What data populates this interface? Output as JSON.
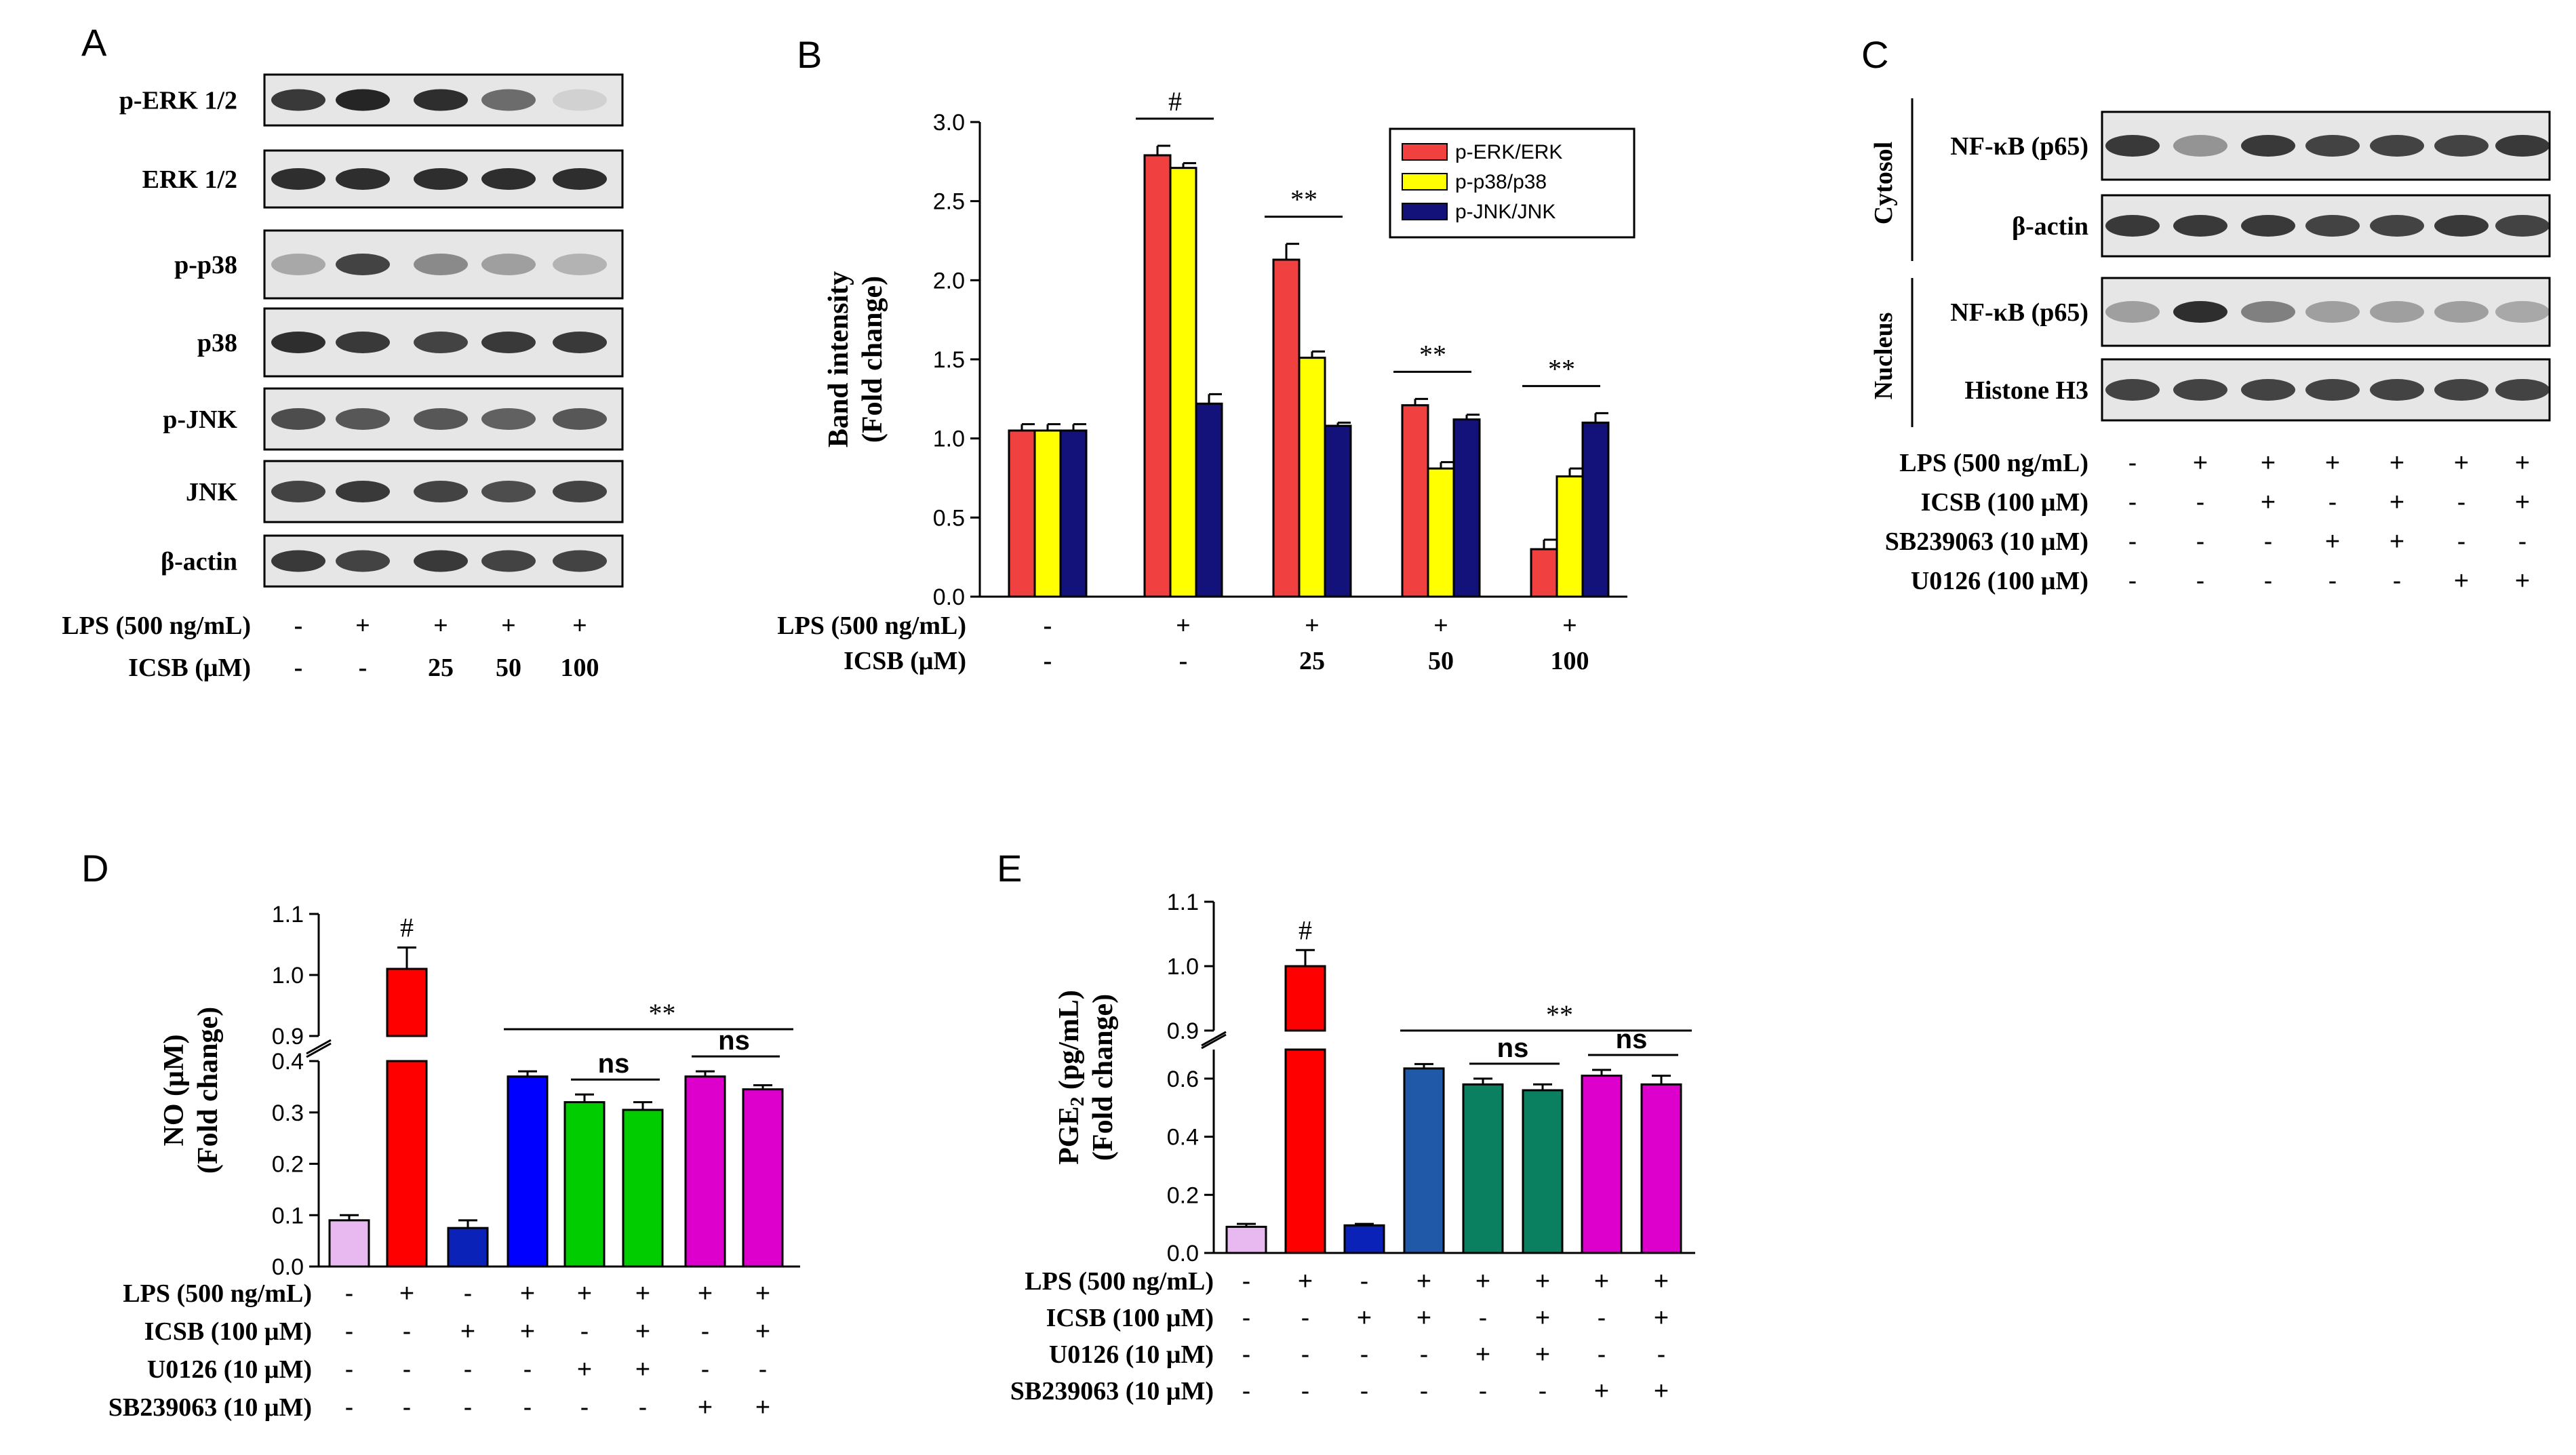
{
  "panels": {
    "A": "A",
    "B": "B",
    "C": "C",
    "D": "D",
    "E": "E"
  },
  "colors": {
    "red": "#f04040",
    "yellow": "#ffff00",
    "navy": "#12127a",
    "lilac": "#e8b8f0",
    "brightred": "#ff0000",
    "blue": "#0000ff",
    "darkblue": "#0a22b8",
    "green": "#00cc00",
    "teal": "#0a8060",
    "magenta": "#dd00cc",
    "steel": "#1f59a8"
  },
  "panelA": {
    "blots": [
      "p-ERK 1/2",
      "ERK 1/2",
      "p-p38",
      "p38",
      "p-JNK",
      "JNK",
      "β-actin"
    ],
    "conditions": [
      {
        "label": "LPS (500 ng/mL)",
        "values": [
          "-",
          "+",
          "+",
          "+",
          "+"
        ]
      },
      {
        "label": "ICSB (μM)",
        "values": [
          "-",
          "-",
          "25",
          "50",
          "100"
        ]
      }
    ]
  },
  "panelC": {
    "fractions": [
      "Cytosol",
      "Nucleus"
    ],
    "blots": [
      "NF-κB (p65)",
      "β-actin",
      "NF-κB (p65)",
      "Histone H3"
    ],
    "conditions": [
      {
        "label": "LPS (500 ng/mL)",
        "values": [
          "-",
          "+",
          "+",
          "+",
          "+",
          "+",
          "+"
        ]
      },
      {
        "label": "ICSB (100 μM)",
        "values": [
          "-",
          "-",
          "+",
          "-",
          "+",
          "-",
          "+"
        ]
      },
      {
        "label": "SB239063 (10 μM)",
        "values": [
          "-",
          "-",
          "-",
          "+",
          "+",
          "-",
          "-"
        ]
      },
      {
        "label": "U0126 (100 μM)",
        "values": [
          "-",
          "-",
          "-",
          "-",
          "-",
          "+",
          "+"
        ]
      }
    ]
  },
  "chart_data": [
    {
      "panel": "B",
      "type": "bar",
      "ylabel_line1": "Band intensity",
      "ylabel_line2": "(Fold change)",
      "ylim": [
        0,
        3.0
      ],
      "yticks": [
        "0.0",
        "0.5",
        "1.0",
        "1.5",
        "2.0",
        "2.5",
        "3.0"
      ],
      "groups": 5,
      "series": [
        {
          "name": "p-ERK/ERK",
          "color": "#f04040",
          "values": [
            1.05,
            2.79,
            2.13,
            1.21,
            0.3
          ],
          "errors": [
            0.04,
            0.06,
            0.1,
            0.04,
            0.06
          ]
        },
        {
          "name": "p-p38/p38",
          "color": "#ffff00",
          "values": [
            1.05,
            2.71,
            1.51,
            0.81,
            0.76
          ],
          "errors": [
            0.04,
            0.03,
            0.04,
            0.04,
            0.05
          ]
        },
        {
          "name": "p-JNK/JNK",
          "color": "#12127a",
          "values": [
            1.05,
            1.22,
            1.08,
            1.12,
            1.1
          ],
          "errors": [
            0.04,
            0.06,
            0.02,
            0.03,
            0.06
          ]
        }
      ],
      "significance": [
        "",
        "#",
        "**",
        "**",
        "**"
      ],
      "conditions": [
        {
          "label": "LPS (500 ng/mL)",
          "values": [
            "-",
            "+",
            "+",
            "+",
            "+"
          ]
        },
        {
          "label": "ICSB (μM)",
          "values": [
            "-",
            "-",
            "25",
            "50",
            "100"
          ]
        }
      ]
    },
    {
      "panel": "D",
      "type": "bar",
      "ylabel_line1": "NO (μM)",
      "ylabel_line2": "(Fold change)",
      "broken_axis": true,
      "lower_range": [
        0.0,
        0.4
      ],
      "upper_range": [
        0.9,
        1.1
      ],
      "lower_ticks": [
        "0.0",
        "0.1",
        "0.2",
        "0.3",
        "0.4"
      ],
      "upper_ticks": [
        "0.9",
        "1.0",
        "1.1"
      ],
      "values": [
        0.09,
        1.01,
        0.075,
        0.37,
        0.32,
        0.305,
        0.37,
        0.345
      ],
      "errors": [
        0.01,
        0.035,
        0.015,
        0.01,
        0.015,
        0.015,
        0.01,
        0.008
      ],
      "bar_colors": [
        "#e8b8f0",
        "#ff0000",
        "#0a22b8",
        "#0000ff",
        "#00cc00",
        "#00cc00",
        "#dd00cc",
        "#dd00cc"
      ],
      "hash": "#",
      "stars": "**",
      "ns_label": "ns",
      "conditions": [
        {
          "label": "LPS (500 ng/mL)",
          "values": [
            "-",
            "+",
            "-",
            "+",
            "+",
            "+",
            "+",
            "+"
          ]
        },
        {
          "label": "ICSB (100 μM)",
          "values": [
            "-",
            "-",
            "+",
            "+",
            "-",
            "+",
            "-",
            "+"
          ]
        },
        {
          "label": "U0126 (10 μM)",
          "values": [
            "-",
            "-",
            "-",
            "-",
            "+",
            "+",
            "-",
            "-"
          ]
        },
        {
          "label": "SB239063 (10 μM)",
          "values": [
            "-",
            "-",
            "-",
            "-",
            "-",
            "-",
            "+",
            "+"
          ]
        }
      ]
    },
    {
      "panel": "E",
      "type": "bar",
      "ylabel_line1": "PGE",
      "ylabel_sub": "2",
      "ylabel_unit": " (pg/mL)",
      "ylabel_line2": "(Fold change)",
      "broken_axis": true,
      "lower_range": [
        0.0,
        0.7
      ],
      "upper_range": [
        0.9,
        1.1
      ],
      "lower_ticks": [
        "0.0",
        "0.2",
        "0.4",
        "0.6"
      ],
      "upper_ticks": [
        "0.9",
        "1.0",
        "1.1"
      ],
      "values": [
        0.09,
        1.0,
        0.095,
        0.635,
        0.58,
        0.56,
        0.61,
        0.58
      ],
      "errors": [
        0.01,
        0.025,
        0.005,
        0.015,
        0.02,
        0.02,
        0.02,
        0.03
      ],
      "bar_colors": [
        "#e8b8f0",
        "#ff0000",
        "#0a22b8",
        "#1f59a8",
        "#0a8060",
        "#0a8060",
        "#dd00cc",
        "#dd00cc"
      ],
      "hash": "#",
      "stars": "**",
      "ns_label": "ns",
      "conditions": [
        {
          "label": "LPS (500 ng/mL)",
          "values": [
            "-",
            "+",
            "-",
            "+",
            "+",
            "+",
            "+",
            "+"
          ]
        },
        {
          "label": "ICSB (100 μM)",
          "values": [
            "-",
            "-",
            "+",
            "+",
            "-",
            "+",
            "-",
            "+"
          ]
        },
        {
          "label": "U0126 (10 μM)",
          "values": [
            "-",
            "-",
            "-",
            "-",
            "+",
            "+",
            "-",
            "-"
          ]
        },
        {
          "label": "SB239063 (10 μM)",
          "values": [
            "-",
            "-",
            "-",
            "-",
            "-",
            "-",
            "+",
            "+"
          ]
        }
      ]
    }
  ]
}
